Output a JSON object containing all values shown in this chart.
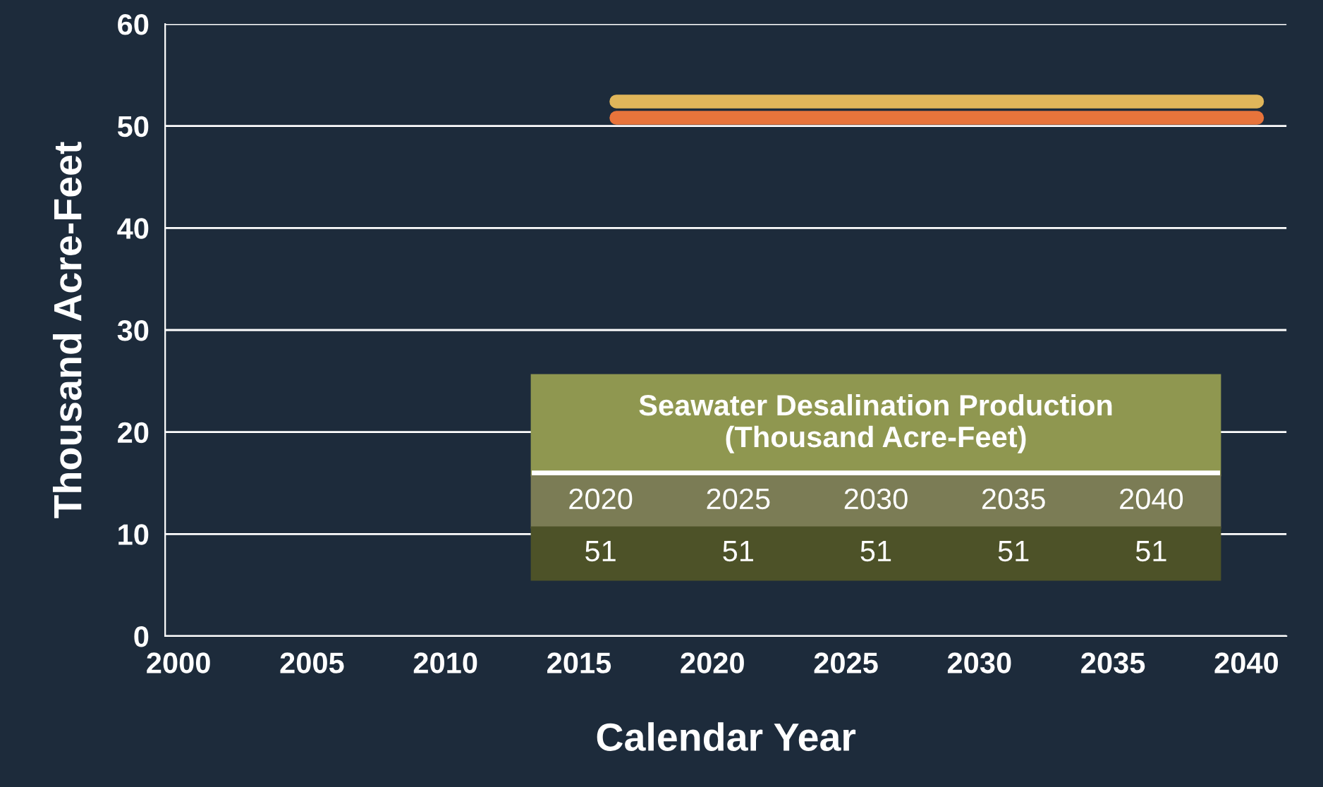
{
  "chart_data": {
    "type": "line",
    "xlabel": "Calendar Year",
    "ylabel": "Thousand Acre-Feet",
    "x": [
      2016.4,
      2040.4
    ],
    "series": [
      {
        "color": "#e0b65a",
        "values": [
          52.4,
          52.4
        ]
      },
      {
        "color": "#e8743b",
        "values": [
          50.8,
          50.8
        ]
      }
    ],
    "xlim": [
      1999.5,
      2041.5
    ],
    "xticks": [
      2000,
      2005,
      2010,
      2015,
      2020,
      2025,
      2030,
      2035,
      2040
    ],
    "ylim": [
      0,
      60
    ],
    "yticks": [
      0,
      10,
      20,
      30,
      40,
      50,
      60
    ],
    "grid": "y",
    "legend": false,
    "marker": "none",
    "line_style": "solid",
    "annotations": [
      "Seawater Desalination Production\n(Thousand Acre-Feet)",
      "2020",
      "2025",
      "2030",
      "2035",
      "2040",
      "51",
      "51",
      "51",
      "51",
      "51"
    ]
  }
}
